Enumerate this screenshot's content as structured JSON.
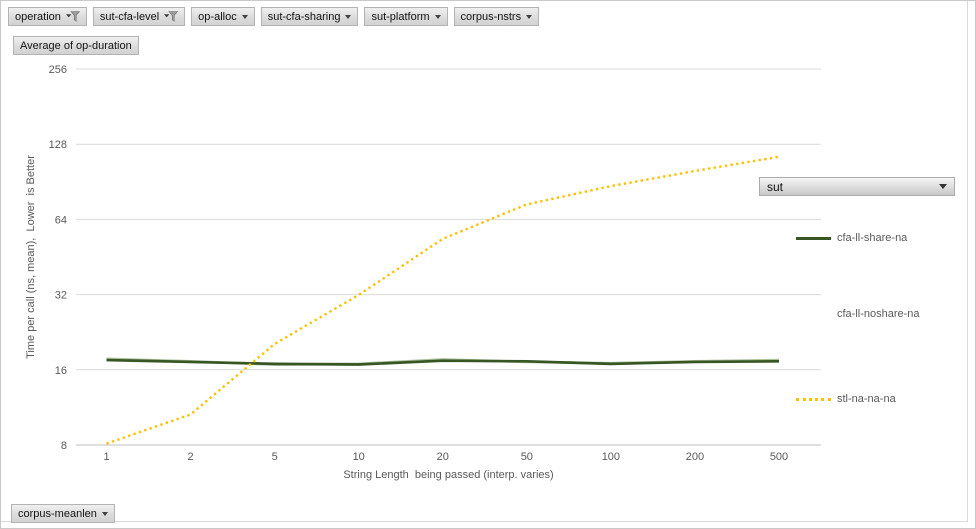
{
  "pivot_fields": {
    "top_buttons": [
      {
        "label": "operation",
        "filtered": true
      },
      {
        "label": "sut-cfa-level",
        "filtered": true
      },
      {
        "label": "op-alloc",
        "filtered": false
      },
      {
        "label": "sut-cfa-sharing",
        "filtered": false
      },
      {
        "label": "sut-platform",
        "filtered": false
      },
      {
        "label": "corpus-nstrs",
        "filtered": false
      }
    ],
    "value_button": "Average of op-duration",
    "legend_button": "sut",
    "bottom_button": "corpus-meanlen"
  },
  "chart_data": {
    "type": "line",
    "title": "",
    "xlabel": "String Length  being passed (interp. varies)",
    "ylabel": "Time per call (ns, mean),  Lower  is Better",
    "x_scale": "log-categorical",
    "y_scale": "log2",
    "ylim": [
      8,
      256
    ],
    "y_ticks": [
      256,
      128,
      64,
      32,
      16,
      8
    ],
    "categories": [
      "1",
      "2",
      "5",
      "10",
      "20",
      "50",
      "100",
      "200",
      "500"
    ],
    "grid": true,
    "legend_position": "right",
    "series": [
      {
        "name": "cfa-ll-share-na",
        "color": "#375623",
        "style": "solid",
        "sample": "solid",
        "values": [
          17.5,
          17.2,
          16.9,
          16.8,
          17.4,
          17.3,
          16.9,
          17.2,
          17.3
        ]
      },
      {
        "name": "cfa-ll-noshare-na",
        "color": "#aec29c",
        "style": "solid",
        "sample": "none",
        "values": [
          17.7,
          17.3,
          16.8,
          16.9,
          17.6,
          17.2,
          17.0,
          17.3,
          17.5
        ]
      },
      {
        "name": "stl-na-na-na",
        "color": "#FFC000",
        "style": "dotted",
        "sample": "dotted",
        "values": [
          8.1,
          10.6,
          20.3,
          31.9,
          53.5,
          73.5,
          87,
          100,
          114
        ]
      }
    ],
    "colors": {
      "gridline": "#d9d9d9",
      "axis_line": "#bfbfbf",
      "tick_text": "#595959"
    }
  }
}
